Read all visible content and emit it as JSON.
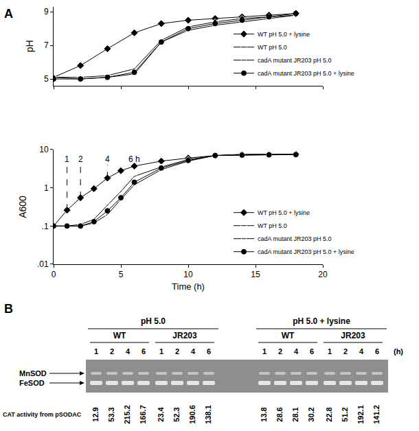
{
  "panel_labels": [
    "A",
    "B"
  ],
  "chart_data": [
    {
      "type": "line",
      "ylabel": "pH",
      "x": [
        0,
        2,
        4,
        6,
        8,
        10,
        12,
        14,
        16,
        18
      ],
      "xlim": [
        0,
        20
      ],
      "xticks": [
        0,
        5,
        10,
        15,
        20
      ],
      "ylim": [
        4.6,
        9.3
      ],
      "yticks": [
        5,
        7,
        9
      ],
      "tick_labels": "y",
      "legend": "lower right",
      "series": [
        {
          "name": "WT pH 5.0 + lysine",
          "color": "#000000",
          "marker": "diamond",
          "line_style": "solid",
          "values": [
            5.1,
            5.8,
            6.8,
            7.75,
            8.3,
            8.5,
            8.6,
            8.7,
            8.8,
            8.9
          ]
        },
        {
          "name": "WT pH 5.0",
          "color": "#000000",
          "marker": "diamond-open",
          "line_style": "solid",
          "values": [
            5.1,
            5.1,
            5.2,
            5.6,
            7.3,
            8.1,
            8.4,
            8.6,
            8.7,
            8.8
          ]
        },
        {
          "name": "cadA mutant JR203 pH 5.0",
          "color": "#000000",
          "marker": "circle-open",
          "line_style": "solid",
          "values": [
            5.1,
            5.0,
            5.1,
            5.3,
            7.2,
            7.9,
            8.2,
            8.4,
            8.6,
            8.8
          ]
        },
        {
          "name": "cadA mutant JR203 pH 5.0 + lysine",
          "color": "#000000",
          "marker": "circle",
          "line_style": "solid",
          "values": [
            5.0,
            5.0,
            5.1,
            5.4,
            7.2,
            8.0,
            8.3,
            8.5,
            8.7,
            8.9
          ]
        }
      ]
    },
    {
      "type": "line",
      "ylabel": "A600",
      "xlabel": "Time (h)",
      "log": "y",
      "x": [
        0,
        1,
        2,
        3,
        4,
        5,
        6,
        8,
        10,
        12,
        14,
        16,
        18
      ],
      "xlim": [
        0,
        20
      ],
      "xticks": [
        0,
        5,
        10,
        15,
        20
      ],
      "ylim": [
        0.01,
        10
      ],
      "yticks": [
        {
          "value": 0.01,
          "label": ".01"
        },
        {
          "value": 0.1,
          "label": ".1"
        },
        1,
        10
      ],
      "legend": "lower right",
      "annotations": [
        {
          "x": 1,
          "text": "1"
        },
        {
          "x": 2,
          "text": "2"
        },
        {
          "x": 4,
          "text": "4"
        },
        {
          "x": 6,
          "text": "6 h"
        }
      ],
      "series": [
        {
          "name": "WT pH 5.0 + lysine",
          "color": "#000000",
          "marker": "diamond",
          "line_style": "solid",
          "values": [
            0.1,
            0.26,
            0.55,
            0.95,
            1.8,
            2.8,
            3.7,
            5,
            6,
            7,
            7.5,
            7.5,
            7.6
          ]
        },
        {
          "name": "WT pH 5.0",
          "color": "#000000",
          "marker": "diamond-open",
          "line_style": "solid",
          "values": [
            0.1,
            0.1,
            0.11,
            0.15,
            0.35,
            0.8,
            2.0,
            3.5,
            5.5,
            7,
            7.5,
            7.5,
            7.5
          ]
        },
        {
          "name": "cadA mutant JR203 pH 5.0",
          "color": "#000000",
          "marker": "circle-open",
          "line_style": "solid",
          "values": [
            0.1,
            0.1,
            0.1,
            0.12,
            0.2,
            0.5,
            1.2,
            3.0,
            5.0,
            7,
            7.3,
            7.4,
            7.5
          ]
        },
        {
          "name": "cadA mutant JR203 pH 5.0 + lysine",
          "color": "#000000",
          "marker": "circle",
          "line_style": "solid",
          "values": [
            0.1,
            0.1,
            0.1,
            0.13,
            0.25,
            0.55,
            1.4,
            3.3,
            5.2,
            7,
            7.2,
            7.3,
            7.4
          ]
        }
      ]
    }
  ],
  "gel": {
    "time_unit": "(h)",
    "bands": [
      "MnSOD",
      "FeSOD"
    ],
    "cat_label": "CAT activity from pSODAC",
    "groups": [
      {
        "label": "pH 5.0",
        "strains": [
          {
            "label": "WT",
            "times": [
              "1",
              "2",
              "4",
              "6"
            ],
            "cat_activity": [
              12.9,
              53.3,
              215.2,
              166.7
            ]
          },
          {
            "label": "JR203",
            "times": [
              "1",
              "2",
              "4",
              "6"
            ],
            "cat_activity": [
              23.4,
              52.3,
              190.6,
              138.1
            ]
          }
        ]
      },
      {
        "label": "pH 5.0 + lysine",
        "strains": [
          {
            "label": "WT",
            "times": [
              "1",
              "2",
              "4",
              "6"
            ],
            "cat_activity": [
              13.8,
              28.6,
              28.1,
              30.2
            ]
          },
          {
            "label": "JR203",
            "times": [
              "1",
              "2",
              "4",
              "6"
            ],
            "cat_activity": [
              22.8,
              51.2,
              192.1,
              141.2
            ]
          }
        ]
      }
    ]
  }
}
